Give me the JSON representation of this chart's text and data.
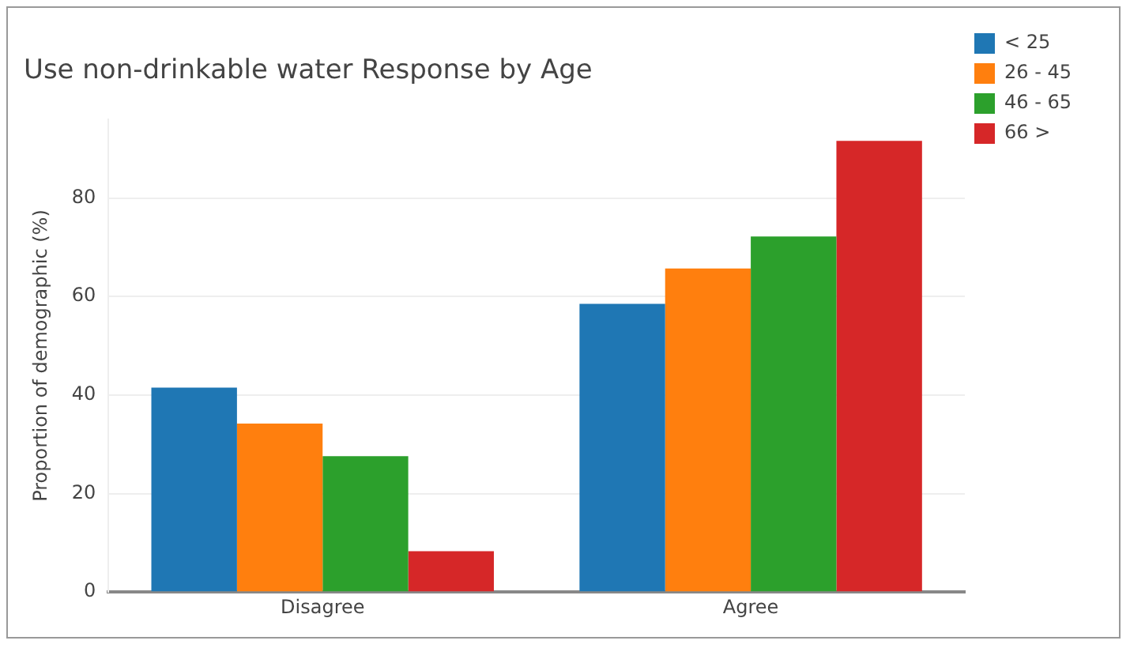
{
  "chart_data": {
    "type": "bar",
    "title": "Use non-drinkable water Response by Age",
    "ylabel": "Proportion of demographic (%)",
    "categories": [
      "Disagree",
      "Agree"
    ],
    "series": [
      {
        "name": "< 25",
        "color": "#1f77b4",
        "values": [
          41.5,
          58.5
        ]
      },
      {
        "name": "26 - 45",
        "color": "#ff7f0e",
        "values": [
          34.2,
          65.7
        ]
      },
      {
        "name": "46 - 65",
        "color": "#2ca02c",
        "values": [
          27.6,
          72.2
        ]
      },
      {
        "name": "66 >",
        "color": "#d62728",
        "values": [
          8.3,
          91.6
        ]
      }
    ],
    "ylim": [
      0,
      96
    ],
    "yticks": [
      0,
      20,
      40,
      60,
      80
    ],
    "grid": "y",
    "legend": "top right"
  }
}
